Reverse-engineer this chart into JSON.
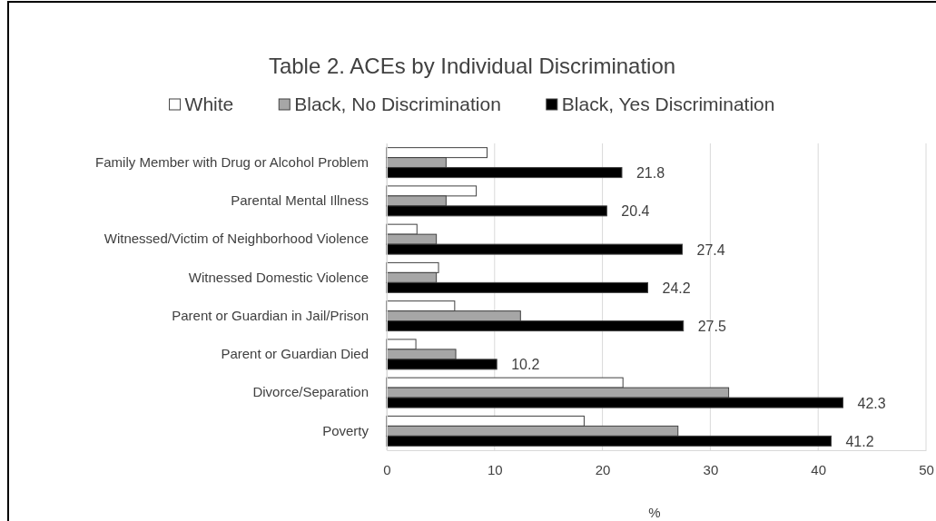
{
  "chart_data": {
    "type": "bar",
    "orientation": "horizontal",
    "title": "Table 2. ACEs by Individual Discrimination",
    "xlabel": "%",
    "categories": [
      "Family Member with Drug or Alcohol Problem",
      "Parental Mental Illness",
      "Witnessed/Victim of Neighborhood Violence",
      "Witnessed Domestic Violence",
      "Parent or Guardian in Jail/Prison",
      "Parent or Guardian Died",
      "Divorce/Separation",
      "Poverty"
    ],
    "series": [
      {
        "name": "White",
        "color": "#ffffff",
        "values": [
          9.3,
          8.3,
          2.8,
          4.8,
          6.3,
          2.7,
          21.9,
          18.3
        ]
      },
      {
        "name": "Black, No Discrimination",
        "color": "#a6a6a6",
        "values": [
          5.5,
          5.5,
          4.6,
          4.6,
          12.4,
          6.4,
          31.7,
          27.0
        ]
      },
      {
        "name": "Black, Yes Discrimination",
        "color": "#000000",
        "values": [
          21.8,
          20.4,
          27.4,
          24.2,
          27.5,
          10.2,
          42.3,
          41.2
        ],
        "value_labels": [
          "21.8",
          "20.4",
          "27.4",
          "24.2",
          "27.5",
          "10.2",
          "42.3",
          "41.2"
        ]
      }
    ],
    "xlim": [
      0,
      50
    ],
    "xticks": [
      0,
      10,
      20,
      30,
      40,
      50
    ],
    "grid": "x",
    "legend": "top"
  }
}
